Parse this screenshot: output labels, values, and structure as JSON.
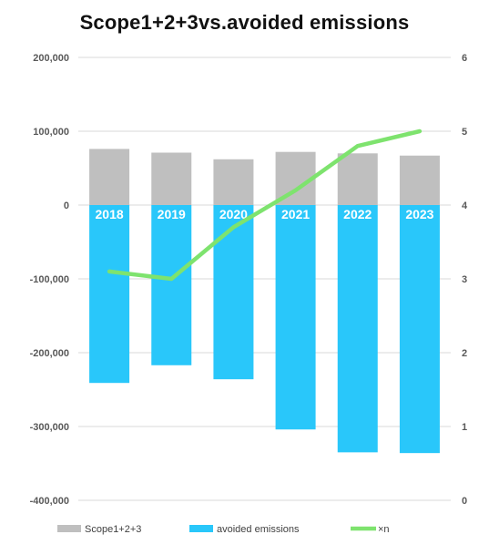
{
  "chart_data": {
    "type": "bar",
    "title": "Scope1+2+3vs.avoided emissions",
    "categories": [
      "2018",
      "2019",
      "2020",
      "2021",
      "2022",
      "2023"
    ],
    "series": [
      {
        "name": "Scope1+2+3",
        "type": "bar",
        "axis": "left",
        "color": "#bfbfbf",
        "values": [
          76000,
          71000,
          62000,
          72000,
          70000,
          67000
        ]
      },
      {
        "name": "avoided emissions",
        "type": "bar",
        "axis": "left",
        "color": "#29c7fa",
        "values": [
          -241000,
          -217000,
          -236000,
          -304000,
          -335000,
          -336000
        ]
      },
      {
        "name": "×n",
        "type": "line",
        "axis": "right",
        "color": "#7ee36e",
        "values": [
          3.1,
          3.0,
          3.7,
          4.2,
          4.8,
          5.0
        ]
      }
    ],
    "y_left": {
      "lim": [
        -400000,
        200000
      ],
      "ticks": [
        "200,000",
        "100,000",
        "0",
        "-100,000",
        "-200,000",
        "-300,000",
        "-400,000"
      ]
    },
    "y_right": {
      "lim": [
        0,
        6
      ],
      "ticks": [
        "6",
        "5",
        "4",
        "3",
        "2",
        "1",
        "0"
      ]
    },
    "category_label_color": "#ffffff",
    "grid": true,
    "legend_position": "bottom"
  }
}
